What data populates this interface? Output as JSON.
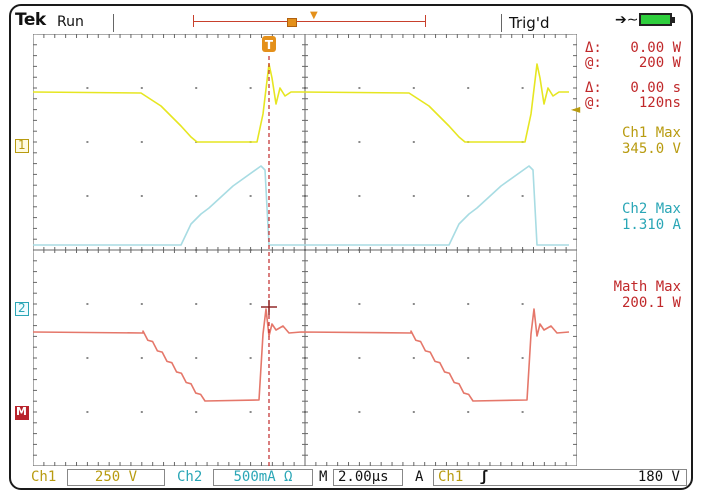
{
  "header": {
    "brand": "Tek",
    "run_state": "Run",
    "trigger_state": "Trig'd",
    "record_window_label": "T",
    "trigger_point_label": "T",
    "icons": [
      "power-plug-icon",
      "battery-full-icon"
    ]
  },
  "colors": {
    "ch1": "#e6e621",
    "ch2": "#a8dce3",
    "math": "#e5776a",
    "cursor": "#c0282a",
    "accent": "#e4901a"
  },
  "markers": {
    "ch1": "1",
    "ch2": "2",
    "math": "M",
    "cursor_trigger": "T"
  },
  "cursor_readouts": [
    {
      "symbol": "Δ:",
      "value": "0.00 W"
    },
    {
      "symbol": "@:",
      "value": "200 W"
    },
    {
      "symbol": "Δ:",
      "value": "0.00 s"
    },
    {
      "symbol": "@:",
      "value": "120ns"
    }
  ],
  "measurements": [
    {
      "label": "Ch1 Max",
      "value": "345.0 V"
    },
    {
      "label": "Ch2 Max",
      "value": "1.310 A"
    },
    {
      "label": "Math Max",
      "value": "200.1 W"
    }
  ],
  "status_bar": {
    "ch1_label": "Ch1",
    "ch1_scale": "250 V",
    "ch2_label": "Ch2",
    "ch2_scale": "500mA Ω",
    "timebase_label": "M",
    "timebase": "2.00µs",
    "trigger_label": "A",
    "trigger_source": "Ch1",
    "trigger_slope": "ʃ",
    "trigger_level": "180 V"
  }
}
